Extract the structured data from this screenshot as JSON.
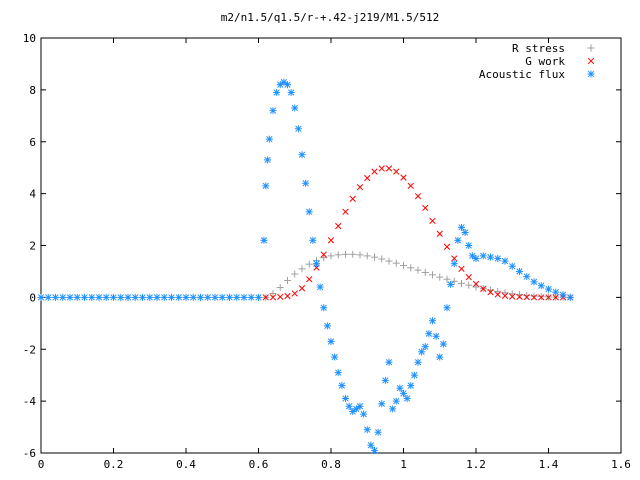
{
  "chart_data": {
    "type": "scatter",
    "title": "m2/n1.5/q1.5/r-+.42-j219/M1.5/512",
    "xlabel": "",
    "ylabel": "",
    "xlim": [
      0,
      1.6
    ],
    "ylim": [
      -6,
      10
    ],
    "x_ticks": [
      "0",
      "0.2",
      "0.4",
      "0.6",
      "0.8",
      "1",
      "1.2",
      "1.4",
      "1.6"
    ],
    "y_ticks": [
      "-6",
      "-4",
      "-2",
      "0",
      "2",
      "4",
      "6",
      "8",
      "10"
    ],
    "grid": false,
    "legend_position": "top-right",
    "series": [
      {
        "name": "R stress",
        "marker": "plus",
        "color": "#a0a0a0",
        "x": [
          0.62,
          0.64,
          0.66,
          0.68,
          0.7,
          0.72,
          0.74,
          0.76,
          0.78,
          0.8,
          0.82,
          0.84,
          0.86,
          0.88,
          0.9,
          0.92,
          0.94,
          0.96,
          0.98,
          1.0,
          1.02,
          1.04,
          1.06,
          1.08,
          1.1,
          1.12,
          1.14,
          1.16,
          1.18,
          1.2,
          1.22,
          1.24,
          1.26,
          1.28,
          1.3,
          1.32,
          1.34,
          1.36,
          1.38,
          1.4,
          1.42,
          1.44,
          1.46
        ],
        "y": [
          0.0,
          0.15,
          0.38,
          0.65,
          0.9,
          1.1,
          1.28,
          1.42,
          1.53,
          1.6,
          1.64,
          1.66,
          1.66,
          1.64,
          1.6,
          1.55,
          1.48,
          1.4,
          1.32,
          1.23,
          1.14,
          1.05,
          0.96,
          0.87,
          0.78,
          0.7,
          0.62,
          0.54,
          0.47,
          0.4,
          0.34,
          0.28,
          0.23,
          0.18,
          0.14,
          0.1,
          0.07,
          0.05,
          0.03,
          0.02,
          0.01,
          0.01,
          0.0
        ]
      },
      {
        "name": "G work",
        "marker": "cross",
        "color": "#ff0000",
        "x": [
          0.62,
          0.64,
          0.66,
          0.68,
          0.7,
          0.72,
          0.74,
          0.76,
          0.78,
          0.8,
          0.82,
          0.84,
          0.86,
          0.88,
          0.9,
          0.92,
          0.94,
          0.96,
          0.98,
          1.0,
          1.02,
          1.04,
          1.06,
          1.08,
          1.1,
          1.12,
          1.14,
          1.16,
          1.18,
          1.2,
          1.22,
          1.24,
          1.26,
          1.28,
          1.3,
          1.32,
          1.34,
          1.36,
          1.38,
          1.4,
          1.42,
          1.44,
          1.46
        ],
        "y": [
          0.0,
          0.0,
          0.02,
          0.05,
          0.15,
          0.35,
          0.7,
          1.15,
          1.65,
          2.2,
          2.75,
          3.3,
          3.8,
          4.25,
          4.6,
          4.85,
          4.97,
          4.97,
          4.85,
          4.62,
          4.3,
          3.9,
          3.45,
          2.95,
          2.45,
          1.95,
          1.5,
          1.1,
          0.78,
          0.52,
          0.33,
          0.2,
          0.11,
          0.06,
          0.03,
          0.02,
          0.01,
          0.0,
          0.0,
          0.0,
          0.0,
          0.0,
          0.0
        ]
      },
      {
        "name": "Acoustic flux",
        "marker": "star",
        "color": "#1e90ff",
        "x": [
          0.0,
          0.02,
          0.04,
          0.06,
          0.08,
          0.1,
          0.12,
          0.14,
          0.16,
          0.18,
          0.2,
          0.22,
          0.24,
          0.26,
          0.28,
          0.3,
          0.32,
          0.34,
          0.36,
          0.38,
          0.4,
          0.42,
          0.44,
          0.46,
          0.48,
          0.5,
          0.52,
          0.54,
          0.56,
          0.58,
          0.6,
          0.615,
          0.62,
          0.625,
          0.63,
          0.64,
          0.65,
          0.66,
          0.67,
          0.68,
          0.69,
          0.7,
          0.71,
          0.72,
          0.73,
          0.74,
          0.75,
          0.76,
          0.77,
          0.78,
          0.79,
          0.8,
          0.81,
          0.82,
          0.83,
          0.84,
          0.85,
          0.86,
          0.87,
          0.88,
          0.89,
          0.9,
          0.91,
          0.92,
          0.93,
          0.94,
          0.95,
          0.96,
          0.97,
          0.98,
          0.99,
          1.0,
          1.01,
          1.02,
          1.03,
          1.04,
          1.05,
          1.06,
          1.07,
          1.08,
          1.09,
          1.1,
          1.11,
          1.12,
          1.13,
          1.14,
          1.15,
          1.16,
          1.17,
          1.18,
          1.19,
          1.2,
          1.22,
          1.24,
          1.26,
          1.28,
          1.3,
          1.32,
          1.34,
          1.36,
          1.38,
          1.4,
          1.42,
          1.44,
          1.46
        ],
        "y": [
          0,
          0,
          0,
          0,
          0,
          0,
          0,
          0,
          0,
          0,
          0,
          0,
          0,
          0,
          0,
          0,
          0,
          0,
          0,
          0,
          0,
          0,
          0,
          0,
          0,
          0,
          0,
          0,
          0,
          0,
          0,
          2.2,
          4.3,
          5.3,
          6.1,
          7.2,
          7.9,
          8.2,
          8.3,
          8.2,
          7.9,
          7.3,
          6.5,
          5.5,
          4.4,
          3.3,
          2.2,
          1.3,
          0.4,
          -0.4,
          -1.1,
          -1.7,
          -2.3,
          -2.9,
          -3.4,
          -3.9,
          -4.2,
          -4.4,
          -4.3,
          -4.2,
          -4.5,
          -5.1,
          -5.7,
          -5.9,
          -5.2,
          -4.1,
          -3.2,
          -2.5,
          -4.3,
          -4.0,
          -3.5,
          -3.7,
          -3.9,
          -3.4,
          -3.0,
          -2.5,
          -2.1,
          -1.9,
          -1.4,
          -0.9,
          -1.5,
          -2.3,
          -1.8,
          -0.4,
          0.5,
          1.3,
          2.2,
          2.7,
          2.5,
          2.0,
          1.6,
          1.5,
          1.6,
          1.55,
          1.5,
          1.4,
          1.2,
          1.0,
          0.8,
          0.6,
          0.45,
          0.32,
          0.2,
          0.1,
          0.0
        ]
      }
    ]
  }
}
